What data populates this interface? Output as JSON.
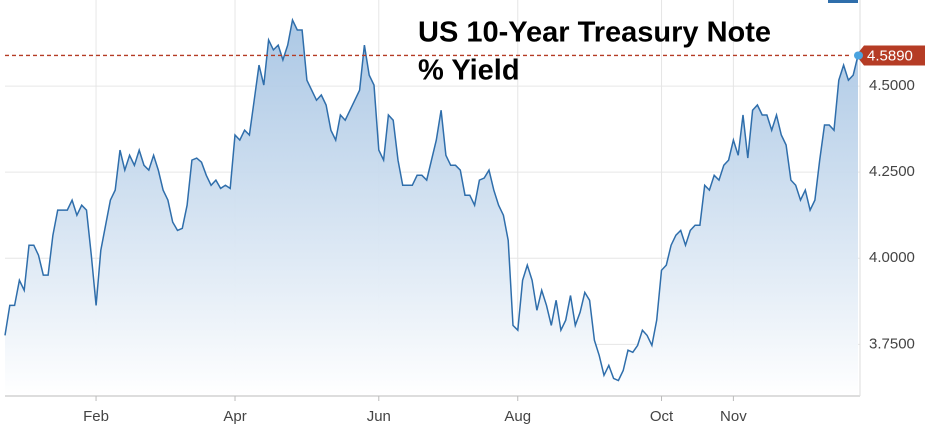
{
  "chart_data": {
    "type": "area",
    "title_lines": [
      "US 10-Year Treasury Note",
      "% Yield"
    ],
    "categories": [
      null,
      null,
      null,
      null,
      null,
      null,
      null,
      null,
      null,
      null,
      null,
      null,
      null,
      null,
      null,
      null,
      null,
      null,
      null,
      "Feb",
      null,
      null,
      null,
      null,
      null,
      null,
      null,
      null,
      null,
      null,
      null,
      null,
      null,
      null,
      null,
      null,
      null,
      null,
      null,
      null,
      null,
      null,
      null,
      null,
      null,
      null,
      null,
      null,
      "Apr",
      null,
      null,
      null,
      null,
      null,
      null,
      null,
      null,
      null,
      null,
      null,
      null,
      null,
      null,
      null,
      null,
      null,
      null,
      null,
      null,
      null,
      null,
      null,
      null,
      null,
      null,
      null,
      null,
      null,
      "Jun",
      null,
      null,
      null,
      null,
      null,
      null,
      null,
      null,
      null,
      null,
      null,
      null,
      null,
      null,
      null,
      null,
      null,
      null,
      null,
      null,
      null,
      null,
      null,
      null,
      null,
      null,
      null,
      null,
      "Aug",
      null,
      null,
      null,
      null,
      null,
      null,
      null,
      null,
      null,
      null,
      null,
      null,
      null,
      null,
      null,
      null,
      null,
      null,
      null,
      null,
      null,
      null,
      null,
      null,
      null,
      null,
      null,
      null,
      null,
      "Oct",
      null,
      null,
      null,
      null,
      null,
      null,
      null,
      null,
      null,
      null,
      null,
      null,
      null,
      null,
      "Nov",
      null,
      null,
      null,
      null,
      null,
      null,
      null,
      null,
      null,
      null,
      null,
      null,
      null,
      null,
      null,
      null,
      null,
      null,
      null,
      null,
      null,
      null,
      null,
      null,
      null,
      null
    ],
    "series": [
      {
        "name": "US 10-Year Treasury Note",
        "color": "#2f6eab",
        "values": [
          3.776,
          3.863,
          3.863,
          3.936,
          3.907,
          4.038,
          4.038,
          4.009,
          3.951,
          3.951,
          4.067,
          4.14,
          4.14,
          4.14,
          4.169,
          4.125,
          4.154,
          4.14,
          4.009,
          3.863,
          4.023,
          4.096,
          4.169,
          4.198,
          4.314,
          4.256,
          4.299,
          4.27,
          4.314,
          4.27,
          4.256,
          4.299,
          4.256,
          4.198,
          4.169,
          4.105,
          4.081,
          4.087,
          4.154,
          4.285,
          4.291,
          4.279,
          4.241,
          4.212,
          4.227,
          4.203,
          4.212,
          4.203,
          4.358,
          4.343,
          4.372,
          4.358,
          4.459,
          4.561,
          4.503,
          4.634,
          4.605,
          4.619,
          4.576,
          4.619,
          4.692,
          4.663,
          4.663,
          4.517,
          4.488,
          4.459,
          4.474,
          4.445,
          4.372,
          4.343,
          4.416,
          4.401,
          4.43,
          4.459,
          4.488,
          4.619,
          4.532,
          4.503,
          4.314,
          4.285,
          4.416,
          4.401,
          4.285,
          4.212,
          4.212,
          4.212,
          4.241,
          4.241,
          4.227,
          4.285,
          4.343,
          4.43,
          4.299,
          4.27,
          4.27,
          4.256,
          4.183,
          4.183,
          4.154,
          4.227,
          4.233,
          4.256,
          4.198,
          4.154,
          4.125,
          4.052,
          3.805,
          3.791,
          3.936,
          3.98,
          3.936,
          3.849,
          3.907,
          3.863,
          3.805,
          3.878,
          3.791,
          3.82,
          3.892,
          3.805,
          3.843,
          3.901,
          3.878,
          3.762,
          3.718,
          3.66,
          3.689,
          3.651,
          3.645,
          3.674,
          3.733,
          3.727,
          3.747,
          3.791,
          3.776,
          3.747,
          3.82,
          3.965,
          3.98,
          4.038,
          4.067,
          4.081,
          4.038,
          4.081,
          4.096,
          4.096,
          4.212,
          4.198,
          4.241,
          4.227,
          4.27,
          4.285,
          4.343,
          4.299,
          4.416,
          4.291,
          4.43,
          4.445,
          4.416,
          4.416,
          4.372,
          4.416,
          4.358,
          4.329,
          4.227,
          4.212,
          4.169,
          4.198,
          4.14,
          4.169,
          4.285,
          4.387,
          4.387,
          4.372,
          4.517,
          4.561,
          4.517,
          4.532,
          4.589
        ]
      }
    ],
    "ylim": [
      3.6,
      4.75
    ],
    "yticks": [
      {
        "value": 3.75,
        "label": "3.7500"
      },
      {
        "value": 4.0,
        "label": "4.0000"
      },
      {
        "value": 4.25,
        "label": "4.2500"
      },
      {
        "value": 4.5,
        "label": "4.5000"
      }
    ],
    "reference_line": {
      "value": 4.589,
      "label": "4.5890",
      "color": "#b53c25"
    },
    "fill_color": "#a3c2e2",
    "grid": true
  }
}
